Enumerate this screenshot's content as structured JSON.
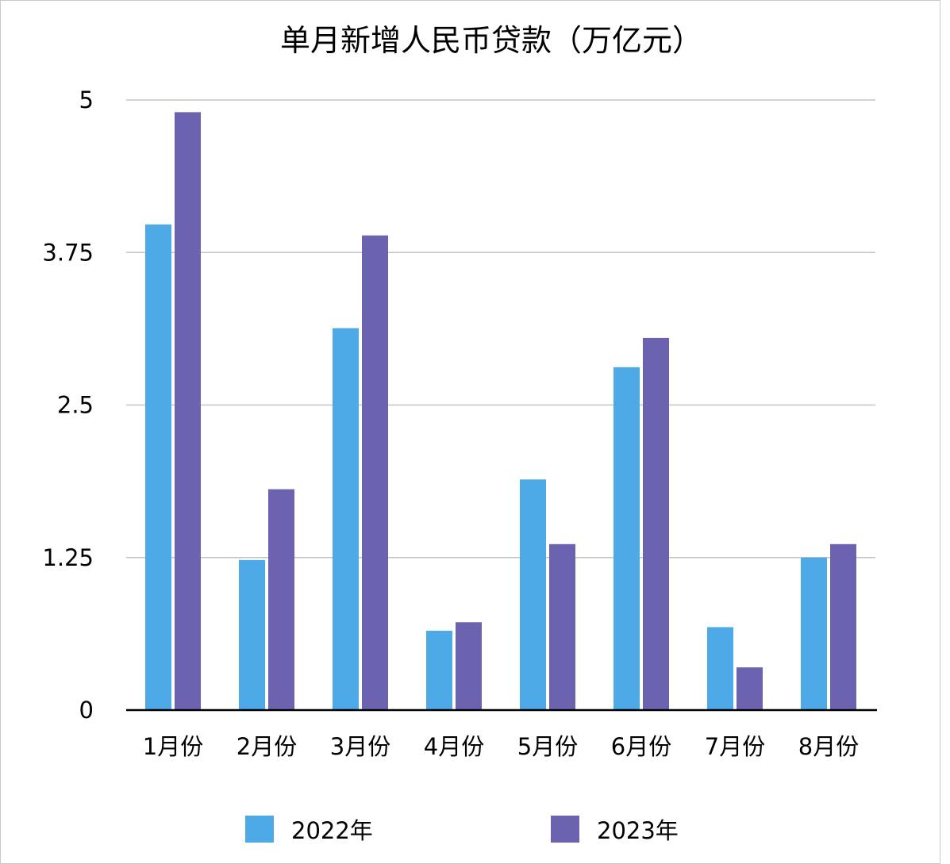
{
  "chart_data": {
    "type": "bar",
    "title": "单月新增人民币贷款（万亿元）",
    "xlabel": "",
    "ylabel": "",
    "categories": [
      "1月份",
      "2月份",
      "3月份",
      "4月份",
      "5月份",
      "6月份",
      "7月份",
      "8月份"
    ],
    "series": [
      {
        "name": "2022年",
        "color": "#4eaae6",
        "values": [
          3.98,
          1.23,
          3.13,
          0.65,
          1.89,
          2.81,
          0.68,
          1.25
        ]
      },
      {
        "name": "2023年",
        "color": "#6c63b0",
        "values": [
          4.9,
          1.81,
          3.89,
          0.72,
          1.36,
          3.05,
          0.35,
          1.36
        ]
      }
    ],
    "ylim": [
      0,
      5
    ],
    "yticks": [
      "0",
      "1.25",
      "2.5",
      "3.75",
      "5"
    ],
    "grid": true,
    "legend_position": "bottom"
  }
}
